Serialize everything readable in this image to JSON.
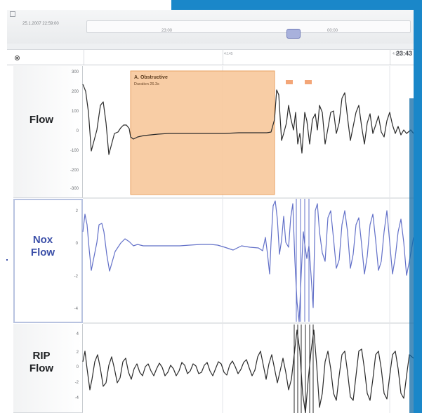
{
  "timebar": {
    "datetime": "25.1.2007 22:59:00",
    "tick_a": "23:00",
    "tick_b": "00:00"
  },
  "ruler": {
    "current_time": "23:43",
    "label_a": "4:145",
    "label_b": "4:146"
  },
  "channels": [
    {
      "name_line1": "Flow",
      "name_line2": "",
      "scale": [
        "300",
        "200",
        "100",
        "0",
        "-100",
        "-200",
        "-300"
      ]
    },
    {
      "name_line1": "Nox",
      "name_line2": "Flow",
      "scale": [
        "2",
        "0",
        "-2",
        "-4"
      ]
    },
    {
      "name_line1": "RIP",
      "name_line2": "Flow",
      "scale": [
        "4",
        "2",
        "0",
        "-2",
        "-4"
      ]
    }
  ],
  "event": {
    "title": "A. Obstructive",
    "duration": "Duration 26.3s"
  },
  "colors": {
    "accent_blue": "#1a87c9",
    "event_fill": "#f7c89b",
    "event_border": "#e9a262",
    "trace_dark": "#2b2b2b",
    "trace_blue": "#6270c8"
  }
}
